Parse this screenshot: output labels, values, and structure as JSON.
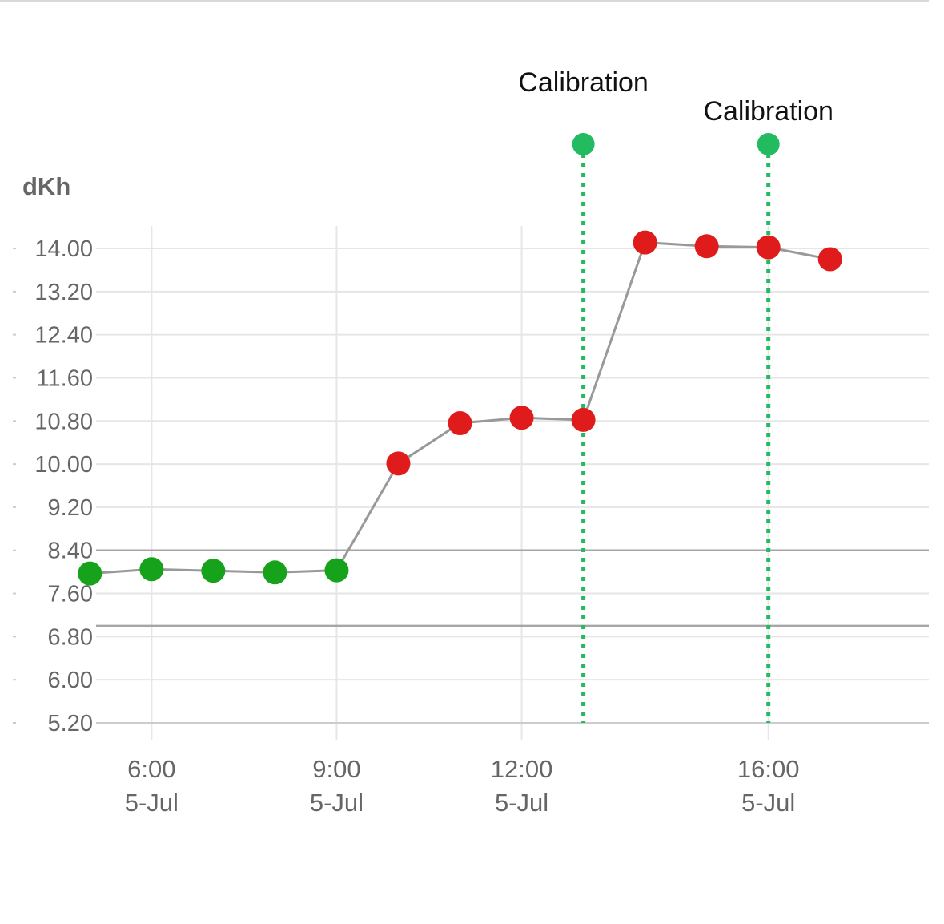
{
  "chart_data": {
    "type": "line",
    "ylabel": "dKh",
    "xlabel": "",
    "ylim": [
      5.2,
      14.0
    ],
    "yticks": [
      "14.00",
      "13.20",
      "12.40",
      "11.60",
      "10.80",
      "10.00",
      "9.20",
      "8.40",
      "7.60",
      "6.80",
      "6.00",
      "5.20"
    ],
    "xticks": [
      {
        "hour": 6.0,
        "time": "6:00",
        "date": "5-Jul"
      },
      {
        "hour": 9.0,
        "time": "9:00",
        "date": "5-Jul"
      },
      {
        "hour": 12.0,
        "time": "12:00",
        "date": "5-Jul"
      },
      {
        "hour": 16.0,
        "time": "16:00",
        "date": "5-Jul"
      }
    ],
    "xlim": [
      5.1,
      18.6
    ],
    "grid": true,
    "series": [
      {
        "name": "",
        "color": "#999999",
        "points": [
          {
            "x": 5.0,
            "y": 7.97,
            "status": "in-range"
          },
          {
            "x": 6.0,
            "y": 8.05,
            "status": "in-range"
          },
          {
            "x": 7.0,
            "y": 8.02,
            "status": "in-range"
          },
          {
            "x": 8.0,
            "y": 7.99,
            "status": "in-range"
          },
          {
            "x": 9.0,
            "y": 8.03,
            "status": "in-range"
          },
          {
            "x": 10.0,
            "y": 10.01,
            "status": "out-of-range"
          },
          {
            "x": 11.0,
            "y": 10.76,
            "status": "out-of-range"
          },
          {
            "x": 12.0,
            "y": 10.86,
            "status": "out-of-range"
          },
          {
            "x": 13.0,
            "y": 10.82,
            "status": "out-of-range"
          },
          {
            "x": 14.0,
            "y": 14.11,
            "status": "out-of-range"
          },
          {
            "x": 15.0,
            "y": 14.04,
            "status": "out-of-range"
          },
          {
            "x": 16.0,
            "y": 14.02,
            "status": "out-of-range"
          },
          {
            "x": 17.0,
            "y": 13.8,
            "status": "out-of-range"
          }
        ]
      }
    ],
    "reference_lines": [
      8.4,
      7.0
    ],
    "annotations": [
      {
        "x": 13.0,
        "label": "Calibration"
      },
      {
        "x": 16.0,
        "label": "Calibration"
      }
    ],
    "colors": {
      "in_range": "#17a21b",
      "out_of_range": "#e01b1b",
      "annotation": "#22bb5f",
      "line": "#999999",
      "grid": "#e6e6e6",
      "reference": "#a6a6a6"
    }
  }
}
